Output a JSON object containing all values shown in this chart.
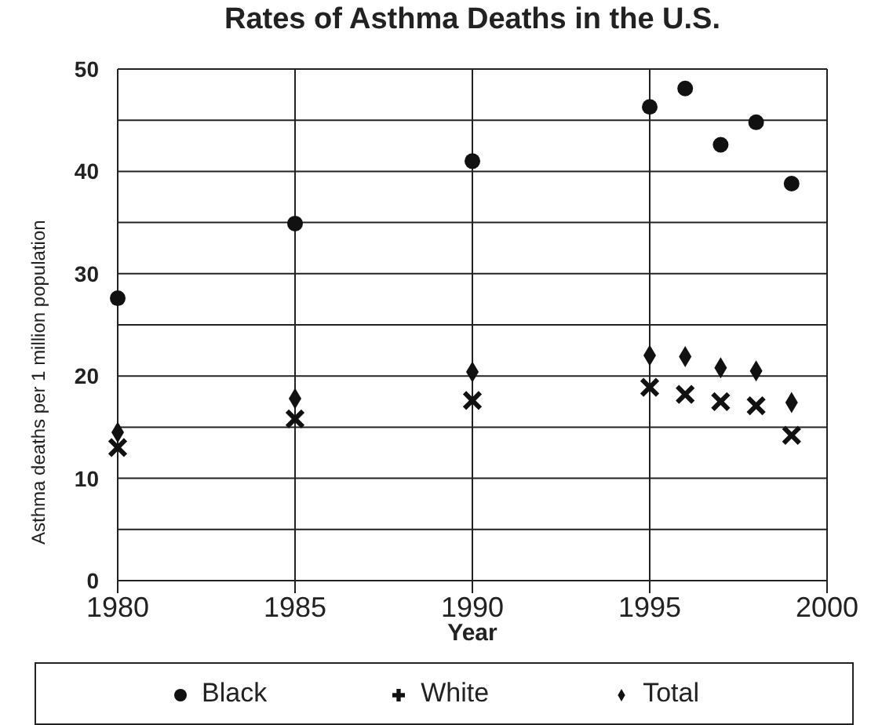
{
  "chart_data": {
    "type": "scatter",
    "title": "Rates of Asthma Deaths in the U.S.",
    "xlabel": "Year",
    "ylabel": "Asthma deaths per 1 million population",
    "x": [
      1980,
      1985,
      1990,
      1995,
      1996,
      1997,
      1998,
      1999
    ],
    "series": [
      {
        "name": "Black",
        "color": "#111111",
        "marker": "circle",
        "values": [
          27.6,
          34.9,
          41.0,
          46.3,
          48.1,
          42.6,
          44.8,
          38.8
        ]
      },
      {
        "name": "White",
        "color": "#111111",
        "marker": "cross",
        "values": [
          13.0,
          15.8,
          17.6,
          18.9,
          18.2,
          17.5,
          17.1,
          14.2
        ]
      },
      {
        "name": "Total",
        "color": "#111111",
        "marker": "diamond",
        "values": [
          14.5,
          17.8,
          20.4,
          22.0,
          21.9,
          20.8,
          20.5,
          17.4
        ]
      }
    ],
    "xlim": [
      1980,
      2000
    ],
    "xticks": [
      1980,
      1985,
      1990,
      1995,
      2000
    ],
    "ylim": [
      0,
      50
    ],
    "yticks": [
      0,
      {
        "value": 5,
        "label": null
      },
      10,
      {
        "value": 15,
        "label": null
      },
      20,
      {
        "value": 25,
        "label": null
      },
      30,
      {
        "value": 35,
        "label": null
      },
      40,
      {
        "value": 45,
        "label": null
      },
      50
    ],
    "grid": true,
    "legend": "bottom"
  }
}
